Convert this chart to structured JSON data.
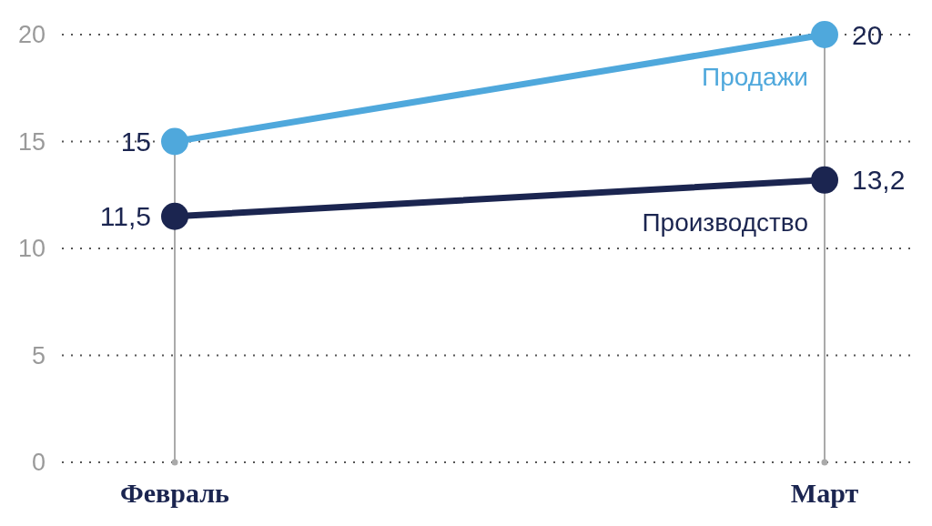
{
  "chart_data": {
    "type": "line",
    "categories": [
      "Февраль",
      "Март"
    ],
    "series": [
      {
        "name": "Продажи",
        "color": "#4fa8dc",
        "values": [
          15,
          20
        ],
        "value_labels": [
          "15",
          "20"
        ]
      },
      {
        "name": "Производство",
        "color": "#1b2550",
        "values": [
          11.5,
          13.2
        ],
        "value_labels": [
          "11,5",
          "13,2"
        ]
      }
    ],
    "ylim": [
      0,
      20
    ],
    "yticks": [
      0,
      5,
      10,
      15,
      20
    ],
    "grid": true,
    "marker": "circle",
    "line_style": "solid"
  }
}
